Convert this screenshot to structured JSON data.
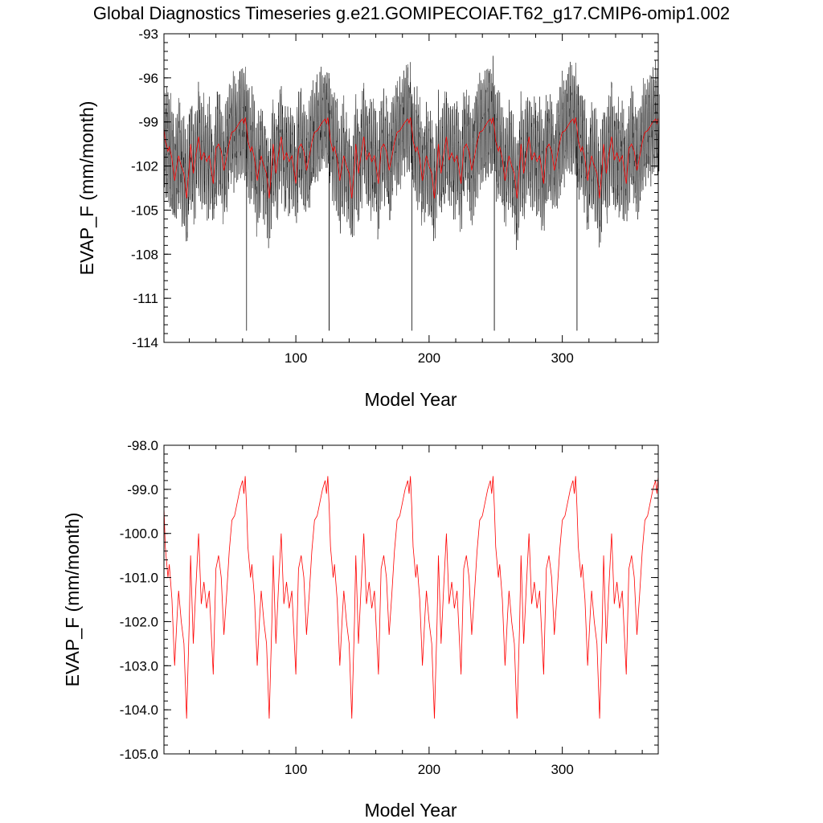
{
  "figure": {
    "title": "Global Diagnostics Timeseries g.e21.GOMIPECOIAF.T62_g17.CMIP6-omip1.002"
  },
  "chart_data": [
    {
      "type": "line",
      "xlabel": "Model Year",
      "ylabel": "EVAP_F (mm/month)",
      "xlim": [
        1,
        372
      ],
      "ylim": [
        -114,
        -93
      ],
      "xticks": [
        100,
        200,
        300
      ],
      "yticks": [
        -93,
        -96,
        -99,
        -102,
        -105,
        -108,
        -111,
        -114
      ],
      "ytick_labels": [
        "-93",
        "-96",
        "-99",
        "-102",
        "-105",
        "-108",
        "-111",
        "-114"
      ],
      "xtick_labels": [
        "100",
        "200",
        "300"
      ],
      "cycle_years": 62,
      "n_cycles": 6,
      "series": [
        {
          "color": "#000000",
          "kind": "monthly",
          "monthly_amplitude": 3.0,
          "minimum_spikes": [
            {
              "x": 63,
              "y": -113.2
            },
            {
              "x": 125,
              "y": -113.2
            },
            {
              "x": 187,
              "y": -113.2
            },
            {
              "x": 249,
              "y": -113.2
            },
            {
              "x": 311,
              "y": -113.2
            }
          ]
        },
        {
          "color": "#ff0000",
          "kind": "annual"
        }
      ]
    },
    {
      "type": "line",
      "xlabel": "Model Year",
      "ylabel": "EVAP_F (mm/month)",
      "xlim": [
        1,
        372
      ],
      "ylim": [
        -105.0,
        -98.0
      ],
      "xticks": [
        100,
        200,
        300
      ],
      "yticks": [
        -98,
        -99,
        -100,
        -101,
        -102,
        -103,
        -104,
        -105
      ],
      "ytick_labels": [
        "-98.0",
        "-99.0",
        "-100.0",
        "-101.0",
        "-102.0",
        "-103.0",
        "-104.0",
        "-105.0"
      ],
      "xtick_labels": [
        "100",
        "200",
        "300"
      ],
      "cycle_years": 62,
      "n_cycles": 6,
      "series": [
        {
          "color": "#ff0000",
          "kind": "annual",
          "annual_cycle": [
            {
              "x": 1,
              "y": -99.4
            },
            {
              "x": 2,
              "y": -100.3
            },
            {
              "x": 4,
              "y": -101.0
            },
            {
              "x": 5,
              "y": -100.7
            },
            {
              "x": 7,
              "y": -101.5
            },
            {
              "x": 9,
              "y": -103.0
            },
            {
              "x": 11,
              "y": -101.8
            },
            {
              "x": 12,
              "y": -101.3
            },
            {
              "x": 14,
              "y": -102.0
            },
            {
              "x": 16,
              "y": -102.5
            },
            {
              "x": 18,
              "y": -104.2
            },
            {
              "x": 20,
              "y": -102.0
            },
            {
              "x": 21,
              "y": -100.5
            },
            {
              "x": 23,
              "y": -102.5
            },
            {
              "x": 25,
              "y": -101.2
            },
            {
              "x": 27,
              "y": -100.0
            },
            {
              "x": 29,
              "y": -101.6
            },
            {
              "x": 31,
              "y": -101.1
            },
            {
              "x": 33,
              "y": -101.7
            },
            {
              "x": 35,
              "y": -101.3
            },
            {
              "x": 38,
              "y": -103.2
            },
            {
              "x": 40,
              "y": -100.8
            },
            {
              "x": 42,
              "y": -100.5
            },
            {
              "x": 44,
              "y": -101.0
            },
            {
              "x": 46,
              "y": -102.3
            },
            {
              "x": 48,
              "y": -101.4
            },
            {
              "x": 50,
              "y": -100.4
            },
            {
              "x": 52,
              "y": -99.7
            },
            {
              "x": 54,
              "y": -99.6
            },
            {
              "x": 56,
              "y": -99.3
            },
            {
              "x": 58,
              "y": -99.0
            },
            {
              "x": 60,
              "y": -98.8
            },
            {
              "x": 61,
              "y": -99.1
            },
            {
              "x": 62,
              "y": -98.7
            },
            {
              "x": 63,
              "y": -99.4
            }
          ]
        }
      ]
    }
  ]
}
